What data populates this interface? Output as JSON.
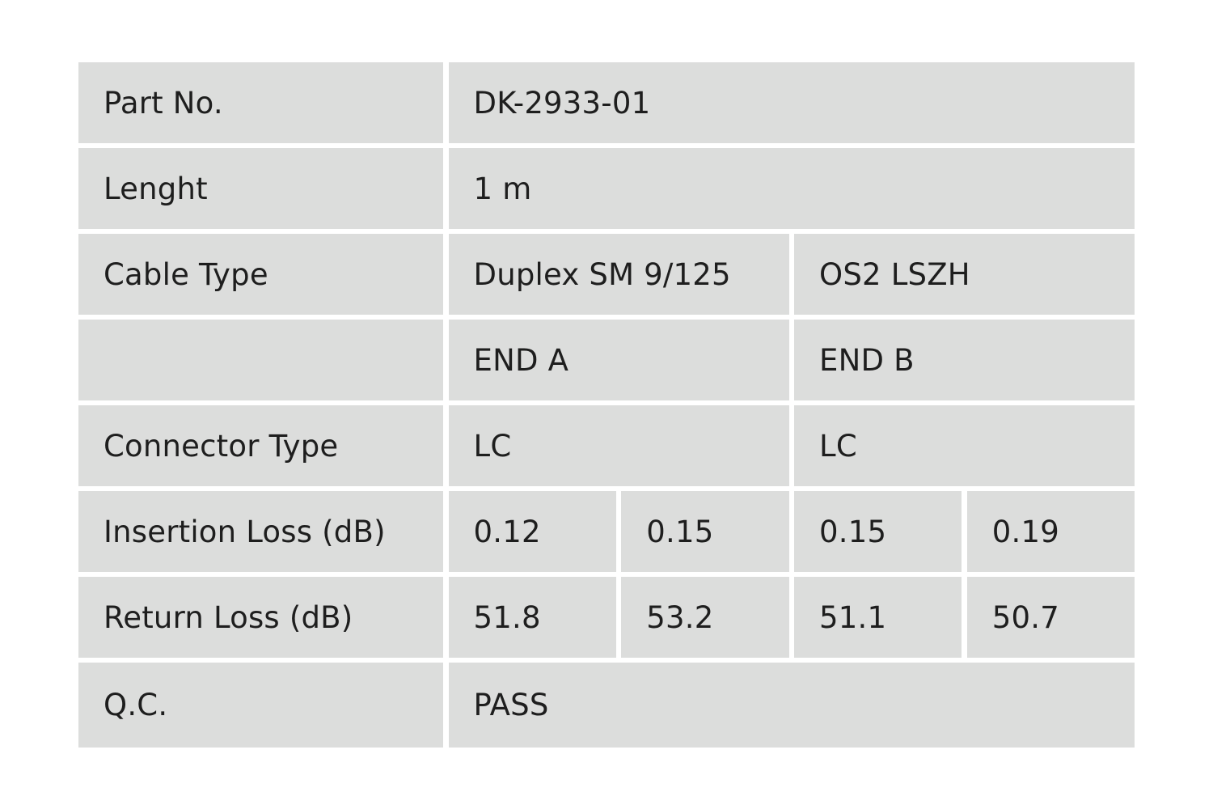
{
  "table": {
    "rows": [
      {
        "label": "Part No.",
        "cells": [
          "DK-2933-01"
        ]
      },
      {
        "label": "Lenght",
        "cells": [
          "1 m"
        ]
      },
      {
        "label": "Cable Type",
        "cells": [
          "Duplex SM 9/125",
          "OS2 LSZH"
        ]
      },
      {
        "cells": [
          "END A",
          "END B"
        ]
      },
      {
        "label": "Connector Type",
        "cells": [
          "LC",
          "LC"
        ]
      },
      {
        "label": "Insertion Loss (dB)",
        "cells": [
          "0.12",
          "0.15",
          "0.15",
          "0.19"
        ]
      },
      {
        "label": "Return Loss (dB)",
        "cells": [
          "51.8",
          "53.2",
          "51.1",
          "50.7"
        ]
      },
      {
        "label": "Q.C.",
        "cells": [
          "PASS"
        ]
      }
    ]
  }
}
